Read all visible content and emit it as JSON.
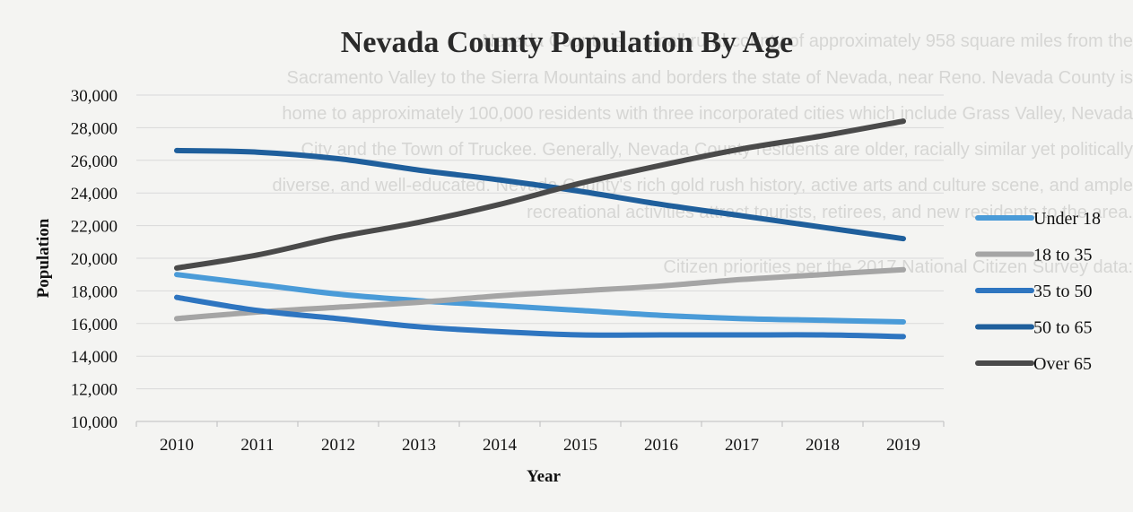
{
  "chart_data": {
    "type": "line",
    "title": "Nevada County Population By Age",
    "xlabel": "Year",
    "ylabel": "Population",
    "x": [
      "2010",
      "2011",
      "2012",
      "2013",
      "2014",
      "2015",
      "2016",
      "2017",
      "2018",
      "2019"
    ],
    "ylim": [
      10000,
      30000
    ],
    "yticks": [
      10000,
      12000,
      14000,
      16000,
      18000,
      20000,
      22000,
      24000,
      26000,
      28000,
      30000
    ],
    "ytick_labels": [
      "10,000",
      "12,000",
      "14,000",
      "16,000",
      "18,000",
      "20,000",
      "22,000",
      "24,000",
      "26,000",
      "28,000",
      "30,000"
    ],
    "grid": true,
    "legend_position": "right",
    "series": [
      {
        "name": "Under 18",
        "color": "#4a9bd8",
        "values": [
          19000,
          18400,
          17800,
          17400,
          17100,
          16800,
          16500,
          16300,
          16200,
          16100
        ]
      },
      {
        "name": "18 to 35",
        "color": "#a5a5a5",
        "values": [
          16300,
          16700,
          17000,
          17300,
          17700,
          18000,
          18300,
          18700,
          19000,
          19300
        ]
      },
      {
        "name": "35 to 50",
        "color": "#2e75c0",
        "values": [
          17600,
          16800,
          16300,
          15800,
          15500,
          15300,
          15300,
          15300,
          15300,
          15200
        ]
      },
      {
        "name": "50 to 65",
        "color": "#1f5f9c",
        "values": [
          26600,
          26500,
          26100,
          25400,
          24800,
          24100,
          23300,
          22600,
          21900,
          21200
        ]
      },
      {
        "name": "Over 65",
        "color": "#4a4a4a",
        "values": [
          19400,
          20200,
          21300,
          22200,
          23300,
          24600,
          25700,
          26700,
          27500,
          28400
        ]
      }
    ]
  },
  "background_text": [
    "Nevada County is a small rural county of approximately 958 square miles from the",
    "Sacramento Valley to the Sierra Mountains and borders the state of Nevada, near Reno. Nevada County is",
    "home to approximately 100,000 residents with three incorporated cities which include Grass Valley, Nevada",
    "City and the Town of Truckee. Generally, Nevada County residents are older, racially similar yet politically",
    "diverse, and well-educated. Nevada County's rich gold rush history, active arts and culture scene, and ample",
    "recreational activities attract tourists, retirees, and new residents to the area.",
    "Citizen priorities per the 2017 National Citizen Survey data:"
  ]
}
